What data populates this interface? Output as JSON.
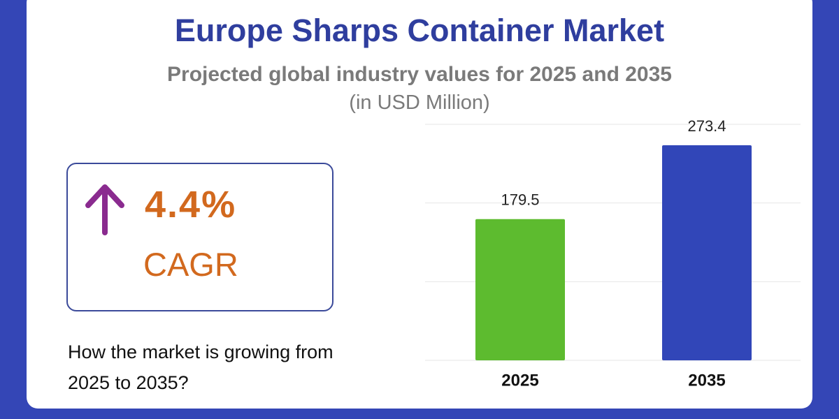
{
  "chart_data": {
    "type": "bar",
    "title": "Europe Sharps Container Market",
    "subtitle": "Projected global industry values for 2025 and 2035",
    "unit_note": "(in USD Million)",
    "categories": [
      "2025",
      "2035"
    ],
    "values": [
      179.5,
      273.4
    ],
    "colors": [
      "#5dbb2f",
      "#3146b8"
    ],
    "ylim": [
      0,
      300
    ],
    "yticks": [
      0,
      100,
      200,
      300
    ],
    "grid": true
  },
  "cagr": "4.4%",
  "cagr_caption": "CAGR",
  "question": "How the market is growing from 2025 to 2035?"
}
